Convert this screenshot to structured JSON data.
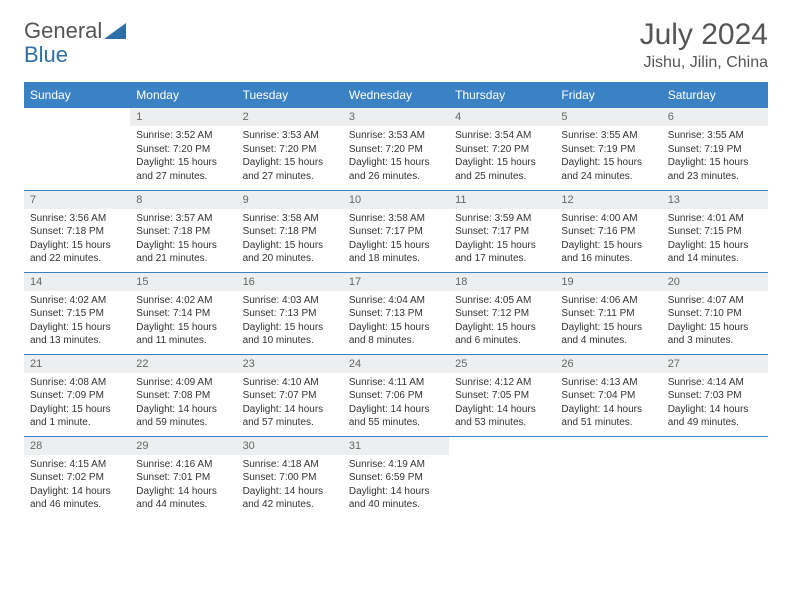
{
  "logo": {
    "text1": "General",
    "text2": "Blue"
  },
  "title": "July 2024",
  "location": "Jishu, Jilin, China",
  "colors": {
    "header_bg": "#3b82c4",
    "daynum_bg": "#eceeef"
  },
  "daynames": [
    "Sunday",
    "Monday",
    "Tuesday",
    "Wednesday",
    "Thursday",
    "Friday",
    "Saturday"
  ],
  "weeks": [
    [
      {
        "n": "",
        "sunrise": "",
        "sunset": "",
        "daylight": "",
        "empty": true
      },
      {
        "n": "1",
        "sunrise": "Sunrise: 3:52 AM",
        "sunset": "Sunset: 7:20 PM",
        "daylight": "Daylight: 15 hours and 27 minutes."
      },
      {
        "n": "2",
        "sunrise": "Sunrise: 3:53 AM",
        "sunset": "Sunset: 7:20 PM",
        "daylight": "Daylight: 15 hours and 27 minutes."
      },
      {
        "n": "3",
        "sunrise": "Sunrise: 3:53 AM",
        "sunset": "Sunset: 7:20 PM",
        "daylight": "Daylight: 15 hours and 26 minutes."
      },
      {
        "n": "4",
        "sunrise": "Sunrise: 3:54 AM",
        "sunset": "Sunset: 7:20 PM",
        "daylight": "Daylight: 15 hours and 25 minutes."
      },
      {
        "n": "5",
        "sunrise": "Sunrise: 3:55 AM",
        "sunset": "Sunset: 7:19 PM",
        "daylight": "Daylight: 15 hours and 24 minutes."
      },
      {
        "n": "6",
        "sunrise": "Sunrise: 3:55 AM",
        "sunset": "Sunset: 7:19 PM",
        "daylight": "Daylight: 15 hours and 23 minutes."
      }
    ],
    [
      {
        "n": "7",
        "sunrise": "Sunrise: 3:56 AM",
        "sunset": "Sunset: 7:18 PM",
        "daylight": "Daylight: 15 hours and 22 minutes."
      },
      {
        "n": "8",
        "sunrise": "Sunrise: 3:57 AM",
        "sunset": "Sunset: 7:18 PM",
        "daylight": "Daylight: 15 hours and 21 minutes."
      },
      {
        "n": "9",
        "sunrise": "Sunrise: 3:58 AM",
        "sunset": "Sunset: 7:18 PM",
        "daylight": "Daylight: 15 hours and 20 minutes."
      },
      {
        "n": "10",
        "sunrise": "Sunrise: 3:58 AM",
        "sunset": "Sunset: 7:17 PM",
        "daylight": "Daylight: 15 hours and 18 minutes."
      },
      {
        "n": "11",
        "sunrise": "Sunrise: 3:59 AM",
        "sunset": "Sunset: 7:17 PM",
        "daylight": "Daylight: 15 hours and 17 minutes."
      },
      {
        "n": "12",
        "sunrise": "Sunrise: 4:00 AM",
        "sunset": "Sunset: 7:16 PM",
        "daylight": "Daylight: 15 hours and 16 minutes."
      },
      {
        "n": "13",
        "sunrise": "Sunrise: 4:01 AM",
        "sunset": "Sunset: 7:15 PM",
        "daylight": "Daylight: 15 hours and 14 minutes."
      }
    ],
    [
      {
        "n": "14",
        "sunrise": "Sunrise: 4:02 AM",
        "sunset": "Sunset: 7:15 PM",
        "daylight": "Daylight: 15 hours and 13 minutes."
      },
      {
        "n": "15",
        "sunrise": "Sunrise: 4:02 AM",
        "sunset": "Sunset: 7:14 PM",
        "daylight": "Daylight: 15 hours and 11 minutes."
      },
      {
        "n": "16",
        "sunrise": "Sunrise: 4:03 AM",
        "sunset": "Sunset: 7:13 PM",
        "daylight": "Daylight: 15 hours and 10 minutes."
      },
      {
        "n": "17",
        "sunrise": "Sunrise: 4:04 AM",
        "sunset": "Sunset: 7:13 PM",
        "daylight": "Daylight: 15 hours and 8 minutes."
      },
      {
        "n": "18",
        "sunrise": "Sunrise: 4:05 AM",
        "sunset": "Sunset: 7:12 PM",
        "daylight": "Daylight: 15 hours and 6 minutes."
      },
      {
        "n": "19",
        "sunrise": "Sunrise: 4:06 AM",
        "sunset": "Sunset: 7:11 PM",
        "daylight": "Daylight: 15 hours and 4 minutes."
      },
      {
        "n": "20",
        "sunrise": "Sunrise: 4:07 AM",
        "sunset": "Sunset: 7:10 PM",
        "daylight": "Daylight: 15 hours and 3 minutes."
      }
    ],
    [
      {
        "n": "21",
        "sunrise": "Sunrise: 4:08 AM",
        "sunset": "Sunset: 7:09 PM",
        "daylight": "Daylight: 15 hours and 1 minute."
      },
      {
        "n": "22",
        "sunrise": "Sunrise: 4:09 AM",
        "sunset": "Sunset: 7:08 PM",
        "daylight": "Daylight: 14 hours and 59 minutes."
      },
      {
        "n": "23",
        "sunrise": "Sunrise: 4:10 AM",
        "sunset": "Sunset: 7:07 PM",
        "daylight": "Daylight: 14 hours and 57 minutes."
      },
      {
        "n": "24",
        "sunrise": "Sunrise: 4:11 AM",
        "sunset": "Sunset: 7:06 PM",
        "daylight": "Daylight: 14 hours and 55 minutes."
      },
      {
        "n": "25",
        "sunrise": "Sunrise: 4:12 AM",
        "sunset": "Sunset: 7:05 PM",
        "daylight": "Daylight: 14 hours and 53 minutes."
      },
      {
        "n": "26",
        "sunrise": "Sunrise: 4:13 AM",
        "sunset": "Sunset: 7:04 PM",
        "daylight": "Daylight: 14 hours and 51 minutes."
      },
      {
        "n": "27",
        "sunrise": "Sunrise: 4:14 AM",
        "sunset": "Sunset: 7:03 PM",
        "daylight": "Daylight: 14 hours and 49 minutes."
      }
    ],
    [
      {
        "n": "28",
        "sunrise": "Sunrise: 4:15 AM",
        "sunset": "Sunset: 7:02 PM",
        "daylight": "Daylight: 14 hours and 46 minutes."
      },
      {
        "n": "29",
        "sunrise": "Sunrise: 4:16 AM",
        "sunset": "Sunset: 7:01 PM",
        "daylight": "Daylight: 14 hours and 44 minutes."
      },
      {
        "n": "30",
        "sunrise": "Sunrise: 4:18 AM",
        "sunset": "Sunset: 7:00 PM",
        "daylight": "Daylight: 14 hours and 42 minutes."
      },
      {
        "n": "31",
        "sunrise": "Sunrise: 4:19 AM",
        "sunset": "Sunset: 6:59 PM",
        "daylight": "Daylight: 14 hours and 40 minutes."
      },
      {
        "n": "",
        "sunrise": "",
        "sunset": "",
        "daylight": "",
        "empty": true
      },
      {
        "n": "",
        "sunrise": "",
        "sunset": "",
        "daylight": "",
        "empty": true
      },
      {
        "n": "",
        "sunrise": "",
        "sunset": "",
        "daylight": "",
        "empty": true
      }
    ]
  ]
}
